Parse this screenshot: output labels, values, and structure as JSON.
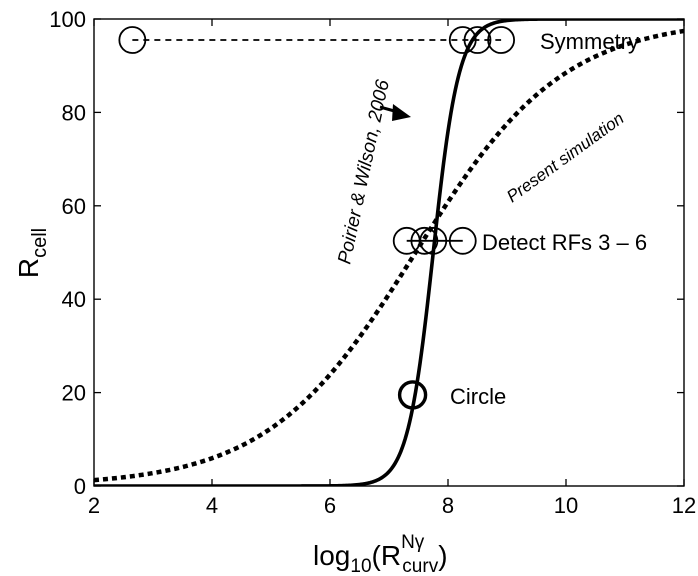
{
  "chart_data": {
    "type": "line",
    "title": "",
    "xlabel": {
      "base": "log",
      "sub1": "10",
      "paren_open": "(R",
      "sup": "N",
      "sup_greek": "γ",
      "sub2": "curv",
      "paren_close": ")"
    },
    "ylabel": {
      "main": "R",
      "sub": "cell"
    },
    "xlim": [
      2,
      12
    ],
    "ylim": [
      0,
      100
    ],
    "x_ticks": [
      2,
      4,
      6,
      8,
      10,
      12
    ],
    "y_ticks": [
      0,
      20,
      40,
      60,
      80,
      100
    ],
    "grid": false,
    "series": [
      {
        "name": "Poirier & Wilson, 2006",
        "style": "solid",
        "color": "#000000",
        "model": "logistic",
        "midpoint": 7.75,
        "slope": 4.6,
        "max": 100
      },
      {
        "name": "Present simulation",
        "style": "dotted",
        "color": "#000000",
        "model": "logistic",
        "midpoint": 7.45,
        "slope": 0.8,
        "max": 100
      }
    ],
    "groups": [
      {
        "label": "Symmetry",
        "y": 95.5,
        "x_points": [
          2.65,
          8.25,
          8.5,
          8.9
        ],
        "connector": "dashed"
      },
      {
        "label": "Detect RFs 3 – 6",
        "y": 52.5,
        "x_points": [
          7.3,
          7.6,
          7.75,
          8.25
        ],
        "connector": "solid"
      },
      {
        "label": "Circle",
        "y": 19.5,
        "x_points": [
          7.4
        ],
        "connector": "none"
      }
    ],
    "annotations": [
      {
        "text": "Poirier & Wilson, 2006",
        "arrow": true
      },
      {
        "text": "Present simulation",
        "arrow": false
      }
    ]
  }
}
